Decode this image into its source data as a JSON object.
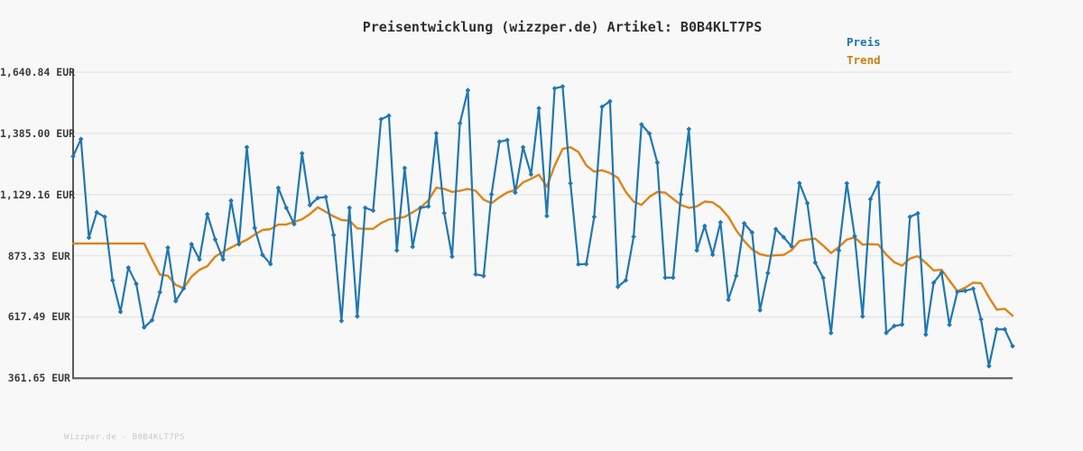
{
  "title": "Preisentwicklung (wizzper.de) Artikel: B0B4KLT7PS",
  "watermark": "Wizzper.de - B0B4KLT7PS",
  "legend": {
    "preis_label": "Preis",
    "trend_label": "Trend"
  },
  "colors": {
    "preis": "#1f77b4",
    "trend": "#dd8419",
    "grid": "#e4e4e4",
    "spine": "#5a5a5a",
    "background": "#f8f8f8",
    "title_text": "#2f2f2f",
    "tick_text": "#3c3c3c",
    "watermark_text": "#c9c9c9"
  },
  "chart_data": {
    "type": "line",
    "title": "Preisentwicklung (wizzper.de) Artikel: B0B4KLT7PS",
    "unit": "EUR",
    "grid": "horizontal",
    "legend_position": "top-right",
    "x_axis": {
      "labels_visible": false,
      "num_points": 120
    },
    "y_axis": {
      "min": 361.65,
      "max": 1640.84,
      "tick_values": [
        1640.84,
        1385.0,
        1129.16,
        873.33,
        617.49,
        361.65
      ],
      "tick_labels": [
        "1,640.84 EUR",
        "1,385.00 EUR",
        "1,129.16 EUR",
        "873.33 EUR",
        "617.49 EUR",
        "361.65 EUR"
      ]
    },
    "series": [
      {
        "name": "Preis",
        "color": "#1f77b4",
        "marker": "diamond",
        "values": [
          1289,
          1361,
          949,
          1055,
          1036,
          771,
          639,
          824,
          756,
          574,
          604,
          721,
          907,
          684,
          737,
          922,
          858,
          1047,
          941,
          858,
          1104,
          922,
          1327,
          990,
          877,
          839,
          1157,
          1074,
          1006,
          1301,
          1085,
          1115,
          1119,
          960,
          601,
          1074,
          620,
          1074,
          1062,
          1444,
          1459,
          896,
          1240,
          911,
          1074,
          1080,
          1385,
          1052,
          870,
          1427,
          1565,
          796,
          789,
          1130,
          1350,
          1357,
          1138,
          1327,
          1213,
          1490,
          1040,
          1573,
          1581,
          1176,
          838,
          839,
          1036,
          1496,
          1519,
          744,
          771,
          953,
          1422,
          1384,
          1263,
          782,
          782,
          1130,
          1403,
          896,
          998,
          878,
          1013,
          690,
          790,
          1009,
          971,
          646,
          801,
          985,
          951,
          913,
          1177,
          1093,
          845,
          781,
          551,
          895,
          1176,
          956,
          620,
          1110,
          1179,
          551,
          580,
          586,
          1036,
          1051,
          544,
          760,
          803,
          585,
          723,
          727,
          736,
          608,
          412,
          566,
          566,
          496
        ]
      },
      {
        "name": "Trend",
        "color": "#dd8419",
        "marker": "none",
        "values": [
          925,
          925,
          925,
          925,
          925,
          925,
          925,
          925,
          925,
          925,
          858,
          795,
          790,
          752,
          738,
          786,
          815,
          830,
          870,
          890,
          908,
          925,
          940,
          962,
          981,
          985,
          1004,
          1004,
          1015,
          1026,
          1048,
          1076,
          1057,
          1038,
          1023,
          1020,
          988,
          986,
          986,
          1010,
          1025,
          1030,
          1036,
          1055,
          1075,
          1105,
          1158,
          1153,
          1140,
          1145,
          1153,
          1145,
          1108,
          1093,
          1118,
          1138,
          1149,
          1180,
          1195,
          1212,
          1162,
          1250,
          1320,
          1327,
          1307,
          1251,
          1225,
          1231,
          1219,
          1199,
          1140,
          1100,
          1086,
          1120,
          1140,
          1137,
          1111,
          1086,
          1074,
          1080,
          1100,
          1097,
          1074,
          1036,
          980,
          935,
          900,
          880,
          873,
          875,
          877,
          897,
          935,
          941,
          945,
          916,
          885,
          910,
          941,
          950,
          920,
          922,
          920,
          878,
          847,
          832,
          862,
          872,
          844,
          812,
          815,
          770,
          725,
          740,
          761,
          759,
          700,
          648,
          652,
          623
        ]
      }
    ]
  }
}
